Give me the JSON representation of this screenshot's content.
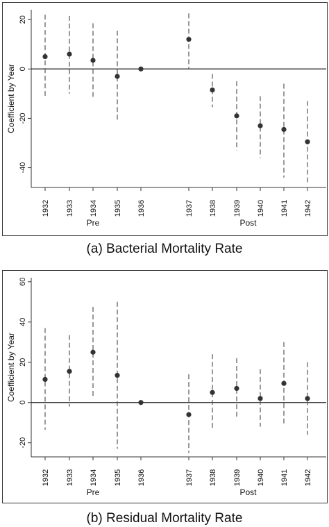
{
  "chart_data": [
    {
      "type": "scatter",
      "caption": "(a) Bacterial Mortality Rate",
      "ylabel": "Coefficient by Year",
      "xlabel": "",
      "ylim": [
        -48,
        24
      ],
      "yticks": [
        20,
        0,
        -20,
        -40
      ],
      "ytick_labels": [
        "20",
        "0",
        "-20",
        "-40"
      ],
      "categories": [
        "1932",
        "1933",
        "1934",
        "1935",
        "1936",
        "1937",
        "1938",
        "1939",
        "1940",
        "1941",
        "1942"
      ],
      "series": [
        {
          "estimate": [
            5,
            6,
            3.5,
            -3,
            0,
            12,
            -8.5,
            -19,
            -23,
            -24.5,
            -29.5
          ],
          "ci_low": [
            -12,
            -10,
            -12,
            -21,
            0,
            0,
            -15.5,
            -33,
            -36,
            -44,
            -46.5
          ],
          "ci_high": [
            22,
            21.5,
            18.5,
            15.5,
            0,
            22.5,
            -2,
            -5,
            -11,
            -6,
            -13
          ]
        }
      ],
      "groups": [
        {
          "label": "Pre",
          "years": [
            "1932",
            "1933",
            "1934",
            "1935",
            "1936"
          ]
        },
        {
          "label": "Post",
          "years": [
            "1937",
            "1938",
            "1939",
            "1940",
            "1941",
            "1942"
          ]
        }
      ],
      "reference_line": 0,
      "grid": false,
      "legend": "none"
    },
    {
      "type": "scatter",
      "caption": "(b) Residual Mortality Rate",
      "ylabel": "Coefficient by Year",
      "xlabel": "",
      "ylim": [
        -27,
        62
      ],
      "yticks": [
        60,
        40,
        20,
        0,
        -20
      ],
      "ytick_labels": [
        "60",
        "40",
        "20",
        "0",
        "-20"
      ],
      "categories": [
        "1932",
        "1933",
        "1934",
        "1935",
        "1936",
        "1937",
        "1938",
        "1939",
        "1940",
        "1941",
        "1942"
      ],
      "series": [
        {
          "estimate": [
            11.5,
            15.5,
            25,
            13.5,
            0,
            -6,
            5,
            7,
            2,
            9.5,
            2
          ],
          "ci_low": [
            -13.5,
            -2,
            3,
            -23,
            0,
            -25,
            -13.5,
            -7.5,
            -12,
            -11.5,
            -16
          ],
          "ci_high": [
            37,
            33.5,
            47.5,
            50,
            0,
            14,
            24,
            22,
            16.5,
            30,
            20
          ]
        }
      ],
      "groups": [
        {
          "label": "Pre",
          "years": [
            "1932",
            "1933",
            "1934",
            "1935",
            "1936"
          ]
        },
        {
          "label": "Post",
          "years": [
            "1937",
            "1938",
            "1939",
            "1940",
            "1941",
            "1942"
          ]
        }
      ],
      "reference_line": 0,
      "grid": false,
      "legend": "none"
    }
  ],
  "colors": {
    "point": "#333333",
    "ci_line": "#555555",
    "zero_line": "#222222",
    "axis": "#333333"
  }
}
